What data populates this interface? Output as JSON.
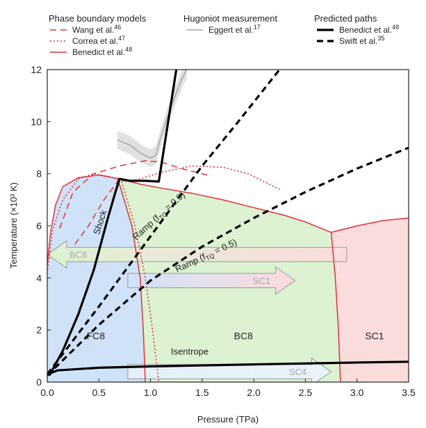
{
  "legend": {
    "phase_title": "Phase boundary models",
    "phase_entries": [
      {
        "text": "Wang et al.",
        "ref": "46",
        "style": "dashed",
        "color": "#e0303a"
      },
      {
        "text": "Correa et al.",
        "ref": "47",
        "style": "dotted",
        "color": "#e0303a"
      },
      {
        "text": "Benedict et al.",
        "ref": "48",
        "style": "solid",
        "color": "#e0303a"
      }
    ],
    "hugoniot_title": "Hugoniot measurement",
    "hugoniot_entries": [
      {
        "text": "Eggert et al.",
        "ref": "17",
        "style": "solid",
        "color": "#a8a8a8"
      }
    ],
    "paths_title": "Predicted paths",
    "paths_entries": [
      {
        "text": "Benedict et al.",
        "ref": "48",
        "style": "solid",
        "color": "#000000"
      },
      {
        "text": "Swift et al.",
        "ref": "35",
        "style": "dashed",
        "color": "#000000"
      }
    ]
  },
  "chart_data": {
    "type": "line",
    "xlabel": "Pressure (TPa)",
    "ylabel": "Temperature (×10³ K)",
    "xlim": [
      0,
      3.5
    ],
    "ylim": [
      0,
      12
    ],
    "x_ticks": [
      0,
      0.5,
      1,
      1.5,
      2,
      2.5,
      3,
      3.5
    ],
    "x_tick_labels": [
      "0.0",
      "0.5",
      "1.0",
      "1.5",
      "2.0",
      "2.5",
      "3.0",
      "3.5"
    ],
    "y_ticks": [
      0,
      2,
      4,
      6,
      8,
      10,
      12
    ],
    "y_tick_labels": [
      "0",
      "2",
      "4",
      "6",
      "8",
      "10",
      "12"
    ],
    "grid": false,
    "colors": {
      "fc8_region": "#cfe2f7",
      "bc8_region": "#dcf2d2",
      "sc1_region": "#fbdcdc",
      "phase_line": "#e0303a",
      "path_line": "#000000",
      "hugoniot": "#a8a8a8"
    },
    "regions": [
      {
        "label": "FC8",
        "at": [
          0.47,
          1.65
        ]
      },
      {
        "label": "BC8",
        "at": [
          1.9,
          1.65
        ]
      },
      {
        "label": "SC1",
        "at": [
          3.17,
          1.65
        ]
      }
    ],
    "phase_boundaries": {
      "benedict_melt": [
        [
          0.0,
          4.5
        ],
        [
          0.03,
          5.7
        ],
        [
          0.08,
          6.8
        ],
        [
          0.15,
          7.5
        ],
        [
          0.3,
          7.85
        ],
        [
          0.5,
          7.95
        ],
        [
          0.7,
          7.8
        ],
        [
          0.9,
          7.6
        ],
        [
          1.1,
          7.45
        ],
        [
          1.4,
          7.25
        ],
        [
          1.7,
          7.0
        ],
        [
          2.0,
          6.7
        ],
        [
          2.3,
          6.4
        ],
        [
          2.5,
          6.15
        ],
        [
          2.75,
          5.75
        ],
        [
          3.0,
          6.0
        ],
        [
          3.25,
          6.2
        ],
        [
          3.5,
          6.3
        ]
      ],
      "benedict_fc8_bc8": [
        [
          0.68,
          7.85
        ],
        [
          0.82,
          6.0
        ],
        [
          0.9,
          4.0
        ],
        [
          0.93,
          2.0
        ],
        [
          0.95,
          0.0
        ]
      ],
      "benedict_bc8_sc1": [
        [
          2.75,
          5.75
        ],
        [
          2.79,
          4.0
        ],
        [
          2.82,
          2.0
        ],
        [
          2.84,
          0.0
        ]
      ],
      "wang": [
        [
          0.12,
          5.9
        ],
        [
          0.25,
          7.3
        ],
        [
          0.45,
          8.0
        ],
        [
          0.7,
          8.3
        ],
        [
          0.95,
          8.5
        ],
        [
          1.1,
          8.45
        ],
        [
          1.3,
          8.2
        ],
        [
          1.55,
          7.95
        ]
      ],
      "wang_fc8_bc8": [
        [
          0.7,
          7.8
        ],
        [
          0.55,
          7.0
        ],
        [
          0.4,
          6.0
        ],
        [
          0.25,
          5.2
        ]
      ],
      "correa": [
        [
          0.0,
          4.2
        ],
        [
          0.05,
          5.8
        ],
        [
          0.15,
          7.0
        ],
        [
          0.3,
          7.8
        ],
        [
          0.45,
          8.0
        ],
        [
          0.6,
          7.9
        ],
        [
          0.75,
          7.7
        ],
        [
          0.9,
          7.8
        ],
        [
          1.1,
          8.05
        ],
        [
          1.4,
          8.3
        ],
        [
          1.7,
          8.25
        ],
        [
          1.95,
          8.0
        ],
        [
          2.25,
          7.4
        ]
      ],
      "correa_fc8_bc8": [
        [
          0.72,
          7.7
        ],
        [
          0.85,
          6.0
        ],
        [
          0.95,
          4.0
        ],
        [
          1.02,
          2.0
        ],
        [
          1.08,
          0.0
        ]
      ]
    },
    "hugoniot": {
      "center": [
        [
          0.68,
          9.3
        ],
        [
          0.8,
          9.1
        ],
        [
          0.9,
          8.8
        ],
        [
          1.0,
          8.6
        ],
        [
          1.05,
          8.7
        ],
        [
          1.1,
          9.4
        ],
        [
          1.2,
          10.6
        ],
        [
          1.3,
          11.6
        ],
        [
          1.35,
          12.0
        ]
      ],
      "band": 0.35
    },
    "series": [
      {
        "name": "Shock",
        "style": "solid",
        "points": [
          [
            0.02,
            0.25
          ],
          [
            0.15,
            1.2
          ],
          [
            0.3,
            2.6
          ],
          [
            0.45,
            4.3
          ],
          [
            0.58,
            6.2
          ],
          [
            0.66,
            7.3
          ],
          [
            0.7,
            7.8
          ],
          [
            0.8,
            7.73
          ],
          [
            0.95,
            7.73
          ],
          [
            1.08,
            7.7
          ],
          [
            1.25,
            12.0
          ]
        ]
      },
      {
        "name": "Ramp (f_TQ = 0.9)",
        "style": "dashed",
        "points": [
          [
            0.0,
            0.3
          ],
          [
            0.5,
            2.9
          ],
          [
            1.0,
            5.6
          ],
          [
            1.5,
            8.3
          ],
          [
            1.85,
            10.0
          ],
          [
            2.25,
            12.0
          ]
        ]
      },
      {
        "name": "Ramp (f_TQ = 0.5)",
        "style": "dashed",
        "points": [
          [
            0.0,
            0.25
          ],
          [
            0.5,
            2.2
          ],
          [
            1.0,
            3.9
          ],
          [
            1.5,
            5.2
          ],
          [
            2.0,
            6.3
          ],
          [
            2.5,
            7.3
          ],
          [
            3.0,
            8.2
          ],
          [
            3.5,
            9.0
          ]
        ]
      },
      {
        "name": "Isentrope",
        "style": "solid",
        "points": [
          [
            0.0,
            0.3
          ],
          [
            0.1,
            0.45
          ],
          [
            0.5,
            0.55
          ],
          [
            1.0,
            0.6
          ],
          [
            2.0,
            0.68
          ],
          [
            3.0,
            0.75
          ],
          [
            3.5,
            0.78
          ]
        ]
      }
    ],
    "path_labels": [
      {
        "text": "Shock",
        "at": [
          0.54,
          6.1
        ],
        "angle": -72
      },
      {
        "text": "Isentrope",
        "at": [
          1.38,
          1.05
        ],
        "angle": 0
      },
      {
        "text": "Ramp (f",
        "sub": "TQ",
        "tail": " = 0.9)",
        "at": [
          1.1,
          6.3
        ],
        "angle": -42
      },
      {
        "text": "Ramp (f",
        "sub": "TQ",
        "tail": " = 0.5)",
        "at": [
          1.55,
          4.75
        ],
        "angle": -25
      }
    ],
    "arrows": [
      {
        "label": "BC8",
        "direction": "left",
        "from": 0.0,
        "to": 2.9,
        "y": 4.9,
        "height": 0.55,
        "colors": [
          "#dcf2d2",
          "#fbdcdc"
        ]
      },
      {
        "label": "SC1",
        "direction": "right",
        "from": 0.78,
        "to": 2.4,
        "y": 3.9,
        "height": 0.55,
        "colors": [
          "#cfe2f7",
          "#fbdcdc"
        ]
      },
      {
        "label": "SC4",
        "direction": "right",
        "from": 0.78,
        "to": 2.75,
        "y": 0.4,
        "height": 0.55,
        "colors": [
          "#e4eff7",
          "#eaf3fa"
        ]
      }
    ]
  }
}
